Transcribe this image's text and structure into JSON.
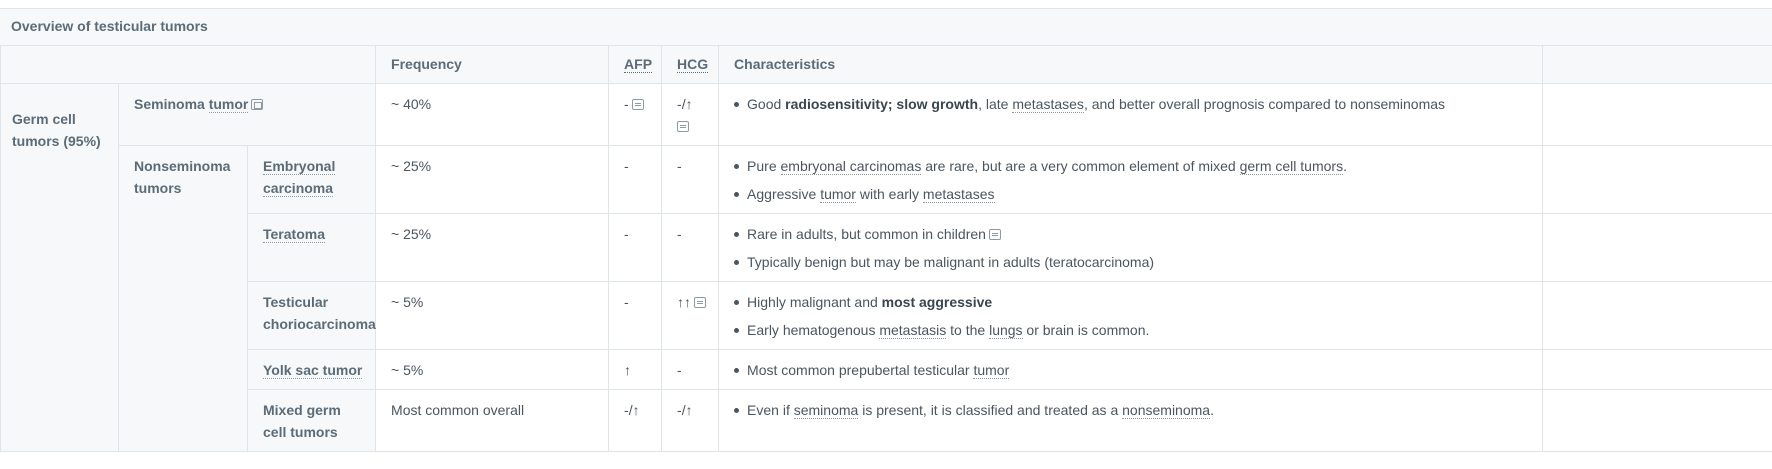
{
  "title": "Overview of testicular tumors",
  "headers": {
    "frequency": "Frequency",
    "afp": "AFP",
    "hcg": "HCG",
    "characteristics": "Characteristics"
  },
  "rows": [
    {
      "group": "Germ cell tumors (95%)",
      "subgroup": "Seminoma tumor",
      "frequency": "~ 40%",
      "afp": "-",
      "hcg": "-/↑",
      "characteristics": {
        "p1": "Good ",
        "b1": "radiosensitivity; slow growth",
        "p2": ", late ",
        "l1": "metastases",
        "p3": ", and better overall prognosis compared to nonseminomas"
      }
    },
    {
      "subgroup": "Nonseminoma tumors",
      "type": "Embryonal carcinoma",
      "frequency": "~ 25%",
      "afp": "-",
      "hcg": "-",
      "c1": {
        "p1": "Pure ",
        "l1": "embryonal carcinomas",
        "p2": " are rare, but are a very common element of mixed ",
        "l2": "germ cell tumors",
        "p3": "."
      },
      "c2": {
        "p1": "Aggressive ",
        "l1": "tumor",
        "p2": " with early ",
        "l2": "metastases"
      }
    },
    {
      "type": "Teratoma",
      "frequency": "~ 25%",
      "afp": "-",
      "hcg": "-",
      "c1": "Rare in adults, but common in children",
      "c2": "Typically benign but may be malignant in adults (teratocarcinoma)"
    },
    {
      "type": "Testicular choriocarcinoma",
      "frequency": "~ 5%",
      "afp": "-",
      "hcg": "↑↑",
      "c1": {
        "p1": "Highly malignant and ",
        "b1": "most aggressive"
      },
      "c2": {
        "p1": "Early hematogenous ",
        "l1": "metastasis",
        "p2": " to the ",
        "l2": "lungs",
        "p3": " or brain is common."
      }
    },
    {
      "type": "Yolk sac tumor",
      "frequency": "~ 5%",
      "afp": "↑",
      "hcg": "-",
      "c1": {
        "p1": "Most common prepubertal testicular ",
        "l1": "tumor"
      }
    },
    {
      "type": "Mixed germ cell tumors",
      "frequency": "Most common overall",
      "afp": "-/↑",
      "hcg": "-/↑",
      "c1": {
        "p1": "Even if ",
        "l1": "seminoma",
        "p2": " is present, it is classified and treated as a ",
        "l2": "nonseminoma",
        "p3": "."
      }
    }
  ],
  "icons": {
    "note": "note-icon",
    "image": "image-icon"
  }
}
